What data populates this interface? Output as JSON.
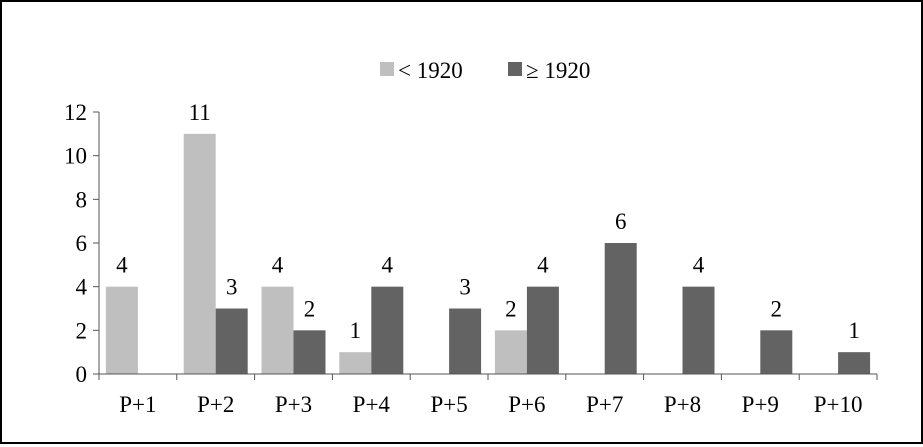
{
  "chart_data": {
    "type": "bar",
    "categories": [
      "P+1",
      "P+2",
      "P+3",
      "P+4",
      "P+5",
      "P+6",
      "P+7",
      "P+8",
      "P+9",
      "P+10"
    ],
    "series": [
      {
        "name": "< 1920",
        "color": "#bfbfbf",
        "values": [
          4,
          11,
          4,
          1,
          null,
          2,
          null,
          null,
          null,
          null
        ]
      },
      {
        "name": "≥ 1920",
        "color": "#636363",
        "values": [
          null,
          3,
          2,
          4,
          3,
          4,
          6,
          4,
          2,
          1
        ]
      }
    ],
    "ylim": [
      0,
      12
    ],
    "yticks": [
      0,
      2,
      4,
      6,
      8,
      10,
      12
    ],
    "legend_position": "top-center",
    "grid": false
  }
}
